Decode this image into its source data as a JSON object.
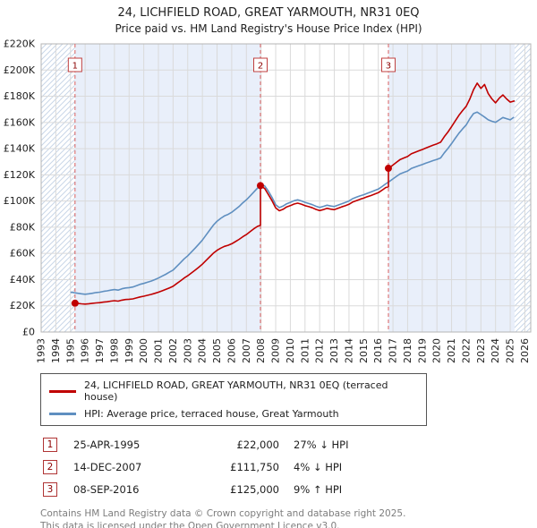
{
  "page": {
    "title": "24, LICHFIELD ROAD, GREAT YARMOUTH, NR31 0EQ",
    "subtitle": "Price paid vs. HM Land Registry's House Price Index (HPI)"
  },
  "legend": [
    {
      "label": "24, LICHFIELD ROAD, GREAT YARMOUTH, NR31 0EQ (terraced house)",
      "color": "#c00000"
    },
    {
      "label": "HPI: Average price, terraced house, Great Yarmouth",
      "color": "#5f8fc0"
    }
  ],
  "transactions": [
    {
      "num": "1",
      "date": "25-APR-1995",
      "price": "£22,000",
      "hpi": "27% ↓ HPI"
    },
    {
      "num": "2",
      "date": "14-DEC-2007",
      "price": "£111,750",
      "hpi": "4% ↓ HPI"
    },
    {
      "num": "3",
      "date": "08-SEP-2016",
      "price": "£125,000",
      "hpi": "9% ↑ HPI"
    }
  ],
  "footer": {
    "line1": "Contains HM Land Registry data © Crown copyright and database right 2025.",
    "line2": "This data is licensed under the Open Government Licence v3.0."
  },
  "chart_data": {
    "type": "line",
    "title": "24, LICHFIELD ROAD, GREAT YARMOUTH, NR31 0EQ",
    "subtitle": "Price paid vs. HM Land Registry's House Price Index (HPI)",
    "y_unit": "GBP thousands",
    "x_min": 1993,
    "x_max": 2026.4,
    "y_min": 0,
    "y_max": 220,
    "y_step": 20,
    "grid": true,
    "legend_position": "bottom",
    "y_tick_labels": [
      "£0",
      "£20K",
      "£40K",
      "£60K",
      "£80K",
      "£100K",
      "£120K",
      "£140K",
      "£160K",
      "£180K",
      "£200K",
      "£220K"
    ],
    "x_ticks": [
      1993,
      1994,
      1995,
      1996,
      1997,
      1998,
      1999,
      2000,
      2001,
      2002,
      2003,
      2004,
      2005,
      2006,
      2007,
      2008,
      2009,
      2010,
      2011,
      2012,
      2013,
      2014,
      2015,
      2016,
      2017,
      2018,
      2019,
      2020,
      2021,
      2022,
      2023,
      2024,
      2025,
      2026
    ],
    "colors": {
      "band": "#e9effa",
      "hatch": "#c9d6e8",
      "grid": "#dadada",
      "border": "#b5b5b5",
      "sale_line": "#d95f5f",
      "sale_dot": "#c00000",
      "sale_box": "#c04040",
      "sale_num": "#8b0000",
      "tick_text": "#222222"
    },
    "shaded_bands": [
      [
        1995.31,
        2007.96
      ],
      [
        2016.69,
        2025.3
      ]
    ],
    "hatch_bands": [
      [
        1993,
        1995.31
      ],
      [
        2025.3,
        2026.4
      ]
    ],
    "sales": [
      {
        "label": "1",
        "x": 1995.31,
        "y": 22.0,
        "date": "25-APR-1995",
        "price_gbp": 22000,
        "vs_hpi": "27% below HPI"
      },
      {
        "label": "2",
        "x": 2007.96,
        "y": 111.75,
        "date": "14-DEC-2007",
        "price_gbp": 111750,
        "vs_hpi": "4% below HPI"
      },
      {
        "label": "3",
        "x": 2016.69,
        "y": 125.0,
        "date": "08-SEP-2016",
        "price_gbp": 125000,
        "vs_hpi": "9% above HPI"
      }
    ],
    "series": [
      {
        "name": "price-paid",
        "label": "24, LICHFIELD ROAD, GREAT YARMOUTH, NR31 0EQ (terraced house)",
        "color": "#c00000",
        "x": [
          1995.25,
          1995.5,
          1995.75,
          1996,
          1996.25,
          1996.5,
          1996.75,
          1997,
          1997.25,
          1997.5,
          1997.75,
          1998,
          1998.25,
          1998.5,
          1998.75,
          1999,
          1999.25,
          1999.5,
          1999.75,
          2000,
          2000.25,
          2000.5,
          2000.75,
          2001,
          2001.25,
          2001.5,
          2001.75,
          2002,
          2002.25,
          2002.5,
          2002.75,
          2003,
          2003.25,
          2003.5,
          2003.75,
          2004,
          2004.25,
          2004.5,
          2004.75,
          2005,
          2005.25,
          2005.5,
          2005.75,
          2006,
          2006.25,
          2006.5,
          2006.75,
          2007,
          2007.25,
          2007.5,
          2007.75,
          2007.96,
          2007.96,
          2008.25,
          2008.5,
          2008.75,
          2009,
          2009.25,
          2009.5,
          2009.75,
          2010,
          2010.25,
          2010.5,
          2010.75,
          2011,
          2011.25,
          2011.5,
          2011.75,
          2012,
          2012.25,
          2012.5,
          2012.75,
          2013,
          2013.25,
          2013.5,
          2013.75,
          2014,
          2014.25,
          2014.5,
          2014.75,
          2015,
          2015.25,
          2015.5,
          2015.75,
          2016,
          2016.25,
          2016.5,
          2016.69,
          2016.69,
          2016.75,
          2017,
          2017.25,
          2017.5,
          2017.75,
          2018,
          2018.25,
          2018.5,
          2018.75,
          2019,
          2019.25,
          2019.5,
          2019.75,
          2020,
          2020.25,
          2020.5,
          2020.75,
          2021,
          2021.25,
          2021.5,
          2021.75,
          2022,
          2022.25,
          2022.5,
          2022.75,
          2023,
          2023.25,
          2023.5,
          2023.75,
          2024,
          2024.25,
          2024.5,
          2024.75,
          2025,
          2025.3
        ],
        "y": [
          22,
          21.8,
          21.5,
          21.3,
          21.6,
          21.9,
          22.2,
          22.4,
          22.8,
          23.1,
          23.6,
          23.9,
          23.6,
          24.3,
          24.8,
          25,
          25.3,
          26,
          26.8,
          27.3,
          28,
          28.7,
          29.5,
          30.4,
          31.4,
          32.5,
          33.7,
          34.9,
          37,
          39,
          41.2,
          43,
          45.1,
          47.2,
          49.5,
          51.8,
          54.6,
          57.4,
          60.2,
          62.4,
          64,
          65.4,
          66.2,
          67.4,
          69,
          70.7,
          72.7,
          74.4,
          76.6,
          78.8,
          80.6,
          81.5,
          111.75,
          109.5,
          105,
          100.3,
          94.8,
          92.6,
          93.7,
          95.5,
          96.5,
          97.7,
          98.4,
          97.6,
          96.5,
          95.7,
          94.8,
          93.6,
          92.7,
          93.5,
          94.4,
          93.8,
          93.4,
          94.5,
          95.5,
          96.4,
          97.5,
          99.2,
          100.3,
          101.3,
          102.2,
          103.3,
          104.2,
          105.3,
          106.4,
          108.2,
          110.3,
          110.9,
          125,
          125.4,
          127.5,
          129.6,
          131.7,
          132.9,
          134,
          136,
          137.2,
          138.3,
          139.3,
          140.5,
          141.6,
          142.7,
          143.7,
          144.9,
          149.1,
          152.7,
          156.9,
          161.2,
          165.5,
          169,
          172.3,
          178,
          185,
          190,
          186,
          189,
          182,
          178,
          175,
          178.5,
          181,
          178,
          175.5,
          176.5
        ]
      },
      {
        "name": "hpi",
        "label": "HPI: Average price, terraced house, Great Yarmouth",
        "color": "#5f8fc0",
        "x_start": 1995.0,
        "x_step": 0.25,
        "y": [
          30.5,
          30,
          29.6,
          29.2,
          28.8,
          29.2,
          29.6,
          30.1,
          30.4,
          31,
          31.4,
          32,
          32.4,
          32,
          33,
          33.6,
          33.9,
          34.4,
          35.3,
          36.4,
          37.1,
          38,
          38.9,
          40,
          41.2,
          42.6,
          44.1,
          45.7,
          47.3,
          50.1,
          52.9,
          55.8,
          58.2,
          61.1,
          64,
          67.1,
          70.2,
          74,
          77.8,
          81.6,
          84.6,
          86.8,
          88.6,
          89.8,
          91.4,
          93.6,
          95.8,
          98.6,
          100.9,
          103.8,
          106.8,
          109.8,
          112.9,
          111.5,
          107.6,
          102.8,
          97.2,
          95,
          96.1,
          97.9,
          99,
          100.2,
          100.9,
          100.1,
          99,
          98.1,
          97.2,
          96,
          95.1,
          95.9,
          96.8,
          96.2,
          95.8,
          96.9,
          97.9,
          98.9,
          100,
          101.8,
          102.9,
          103.9,
          104.8,
          105.9,
          106.9,
          108,
          109.1,
          111,
          113.1,
          114.9,
          116.9,
          118.9,
          120.8,
          121.9,
          122.9,
          124.8,
          125.9,
          126.9,
          127.8,
          128.9,
          129.9,
          130.9,
          131.8,
          132.9,
          136.8,
          140.1,
          143.9,
          147.9,
          151.8,
          155,
          158.1,
          162.9,
          166.8,
          167.9,
          166,
          164.1,
          162,
          160.9,
          160.1,
          161.9,
          163.8,
          162.9,
          162,
          164
        ]
      }
    ]
  }
}
